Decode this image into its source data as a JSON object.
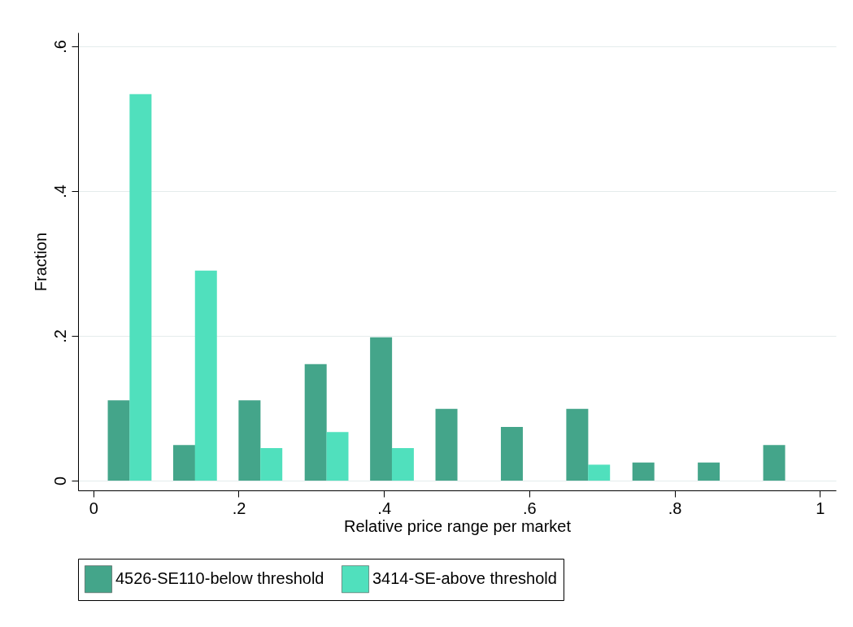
{
  "chart_data": {
    "type": "bar",
    "xlabel": "Relative price range per market",
    "ylabel": "Fraction",
    "xlim": [
      -0.021,
      1.022
    ],
    "ylim": [
      -0.0135,
      0.619
    ],
    "xticks": [
      0,
      {
        "value": 0.2,
        "label": ".2"
      },
      {
        "value": 0.4,
        "label": ".4"
      },
      {
        "value": 0.6,
        "label": ".6"
      },
      {
        "value": 0.8,
        "label": ".8"
      },
      1
    ],
    "yticks": [
      0,
      {
        "value": 0.2,
        "label": ".2"
      },
      {
        "value": 0.4,
        "label": ".4"
      },
      {
        "value": 0.6,
        "label": ".6"
      }
    ],
    "grid": "y",
    "legend": "bottom",
    "series": [
      {
        "name": "4526-SE110-below threshold",
        "color": "#44a58a",
        "x": [
          0.035,
          0.125,
          0.215,
          0.306,
          0.396,
          0.486,
          0.576,
          0.666,
          0.757,
          0.847,
          0.937
        ],
        "values": [
          0.111,
          0.049,
          0.111,
          0.161,
          0.198,
          0.099,
          0.074,
          0.099,
          0.025,
          0.025,
          0.049
        ]
      },
      {
        "name": "3414-SE-above threshold",
        "color": "#50e0bd",
        "x": [
          0.065,
          0.155,
          0.245,
          0.336,
          0.426,
          0.696
        ],
        "values": [
          0.534,
          0.29,
          0.045,
          0.067,
          0.045,
          0.022
        ]
      }
    ]
  }
}
